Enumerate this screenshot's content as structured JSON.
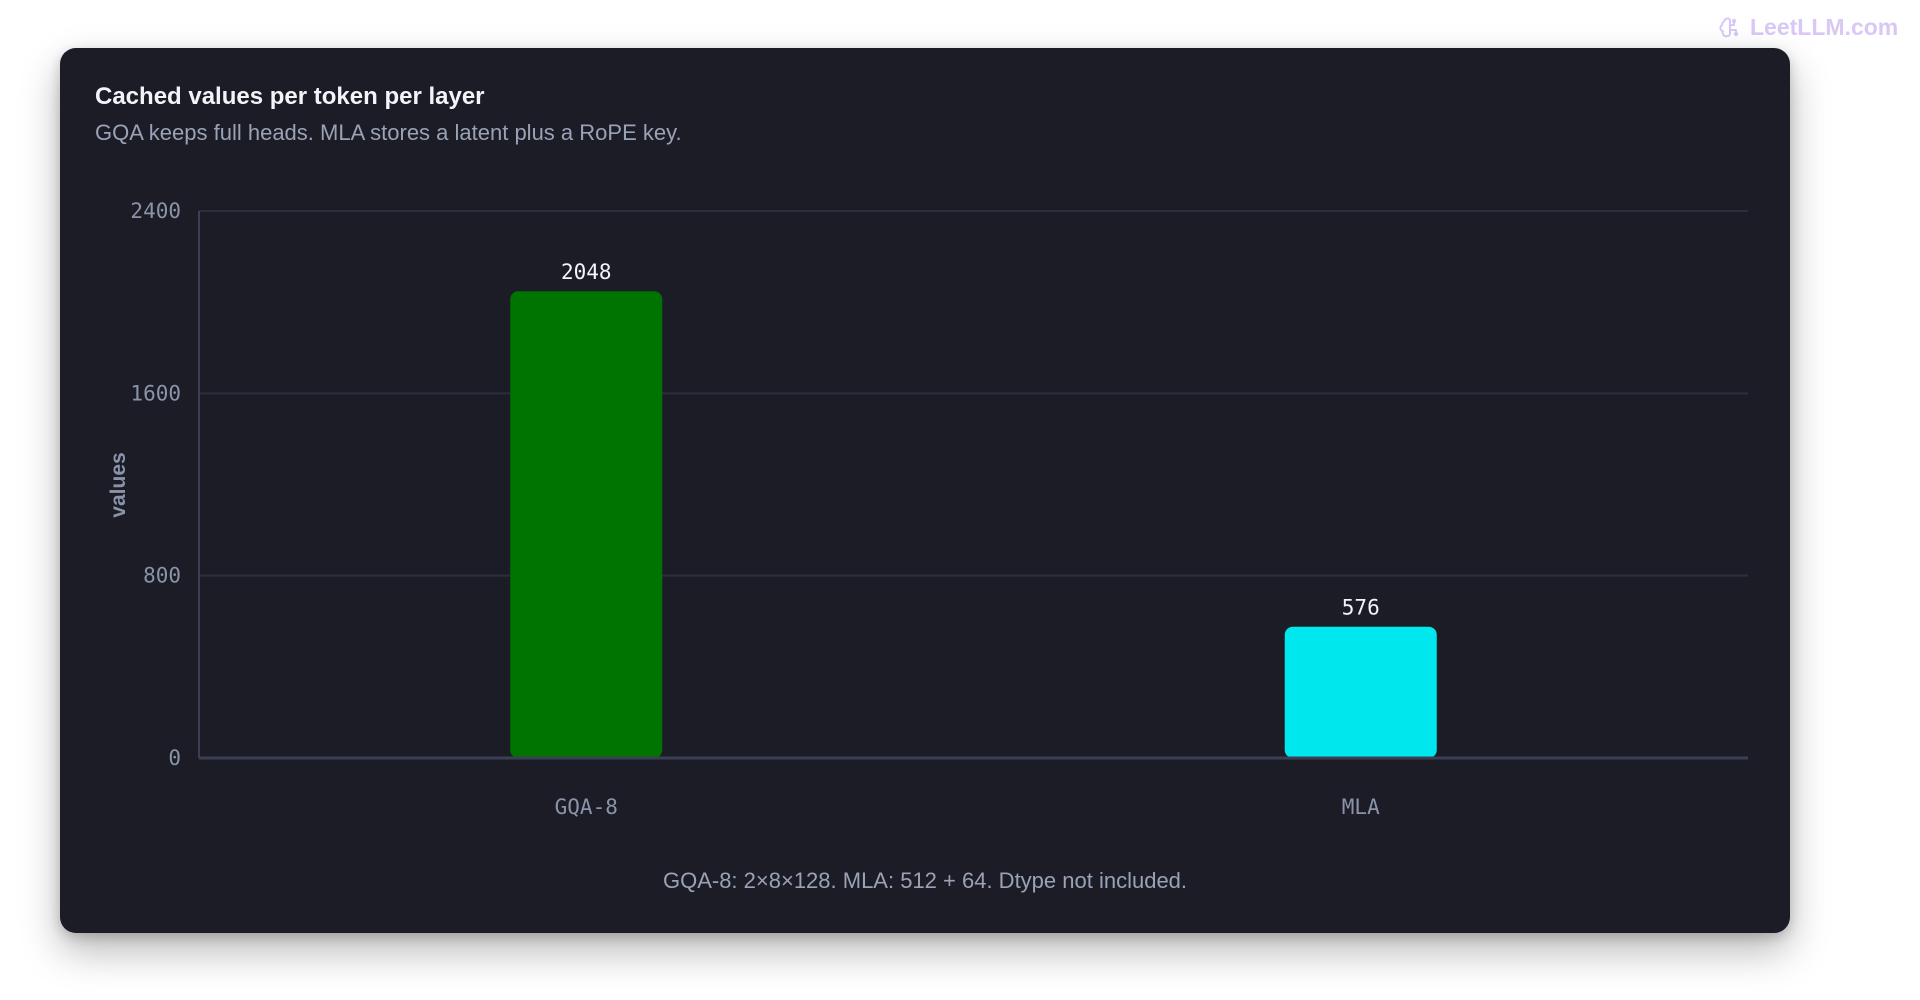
{
  "watermark": {
    "text": "LeetLLM.com",
    "icon": "brain-icon",
    "color": "#d9c8f5"
  },
  "chart_data": {
    "type": "bar",
    "title": "Cached values per token per layer",
    "subtitle": "GQA keeps full heads. MLA stores a latent plus a RoPE key.",
    "xlabel": "",
    "ylabel": "values",
    "categories": [
      "GQA-8",
      "MLA"
    ],
    "values": [
      2048,
      576
    ],
    "value_labels": [
      "2048",
      "576"
    ],
    "colors": [
      "#007400",
      "#00e8ee"
    ],
    "ylim": [
      0,
      2400
    ],
    "yticks": [
      0,
      800,
      1600,
      2400
    ],
    "ytick_labels": [
      "0",
      "800",
      "1600",
      "2400"
    ],
    "grid": true,
    "legend": "none",
    "footnote": "GQA-8: 2×8×128. MLA: 512 + 64. Dtype not included."
  }
}
